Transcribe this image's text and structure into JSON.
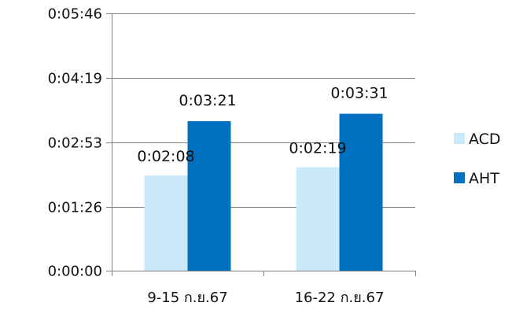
{
  "chart_data": {
    "type": "bar",
    "categories": [
      "9-15 ก.ย.67",
      "16-22 ก.ย.67"
    ],
    "series": [
      {
        "name": "ACD",
        "values": [
          "0:02:08",
          "0:02:19"
        ],
        "seconds": [
          128,
          139
        ],
        "color": "#CCE8FB"
      },
      {
        "name": "AHT",
        "values": [
          "0:03:21",
          "0:03:31"
        ],
        "seconds": [
          201,
          211
        ],
        "color": "#0070C0"
      }
    ],
    "y_ticks": [
      "0:00:00",
      "0:01:26",
      "0:02:53",
      "0:04:19",
      "0:05:46"
    ],
    "y_tick_seconds": [
      0,
      86,
      173,
      259,
      346
    ],
    "ylim": [
      0,
      346
    ],
    "grid": true,
    "legend_position": "right",
    "gridline_color": "#808080"
  }
}
